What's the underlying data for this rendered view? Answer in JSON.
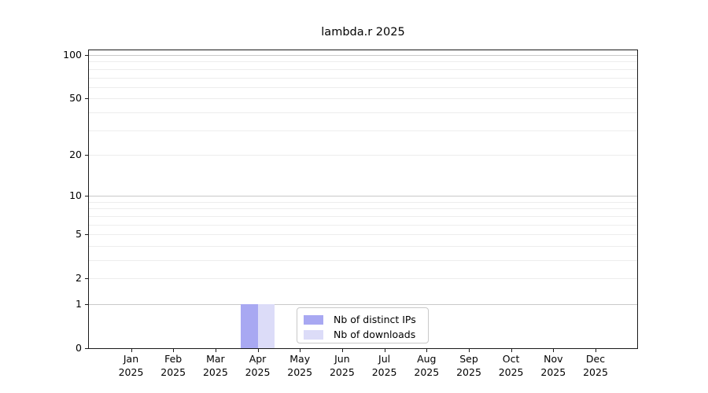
{
  "chart_data": {
    "type": "bar",
    "title": "lambda.r 2025",
    "x": {
      "months": [
        "Jan",
        "Feb",
        "Mar",
        "Apr",
        "May",
        "Jun",
        "Jul",
        "Aug",
        "Sep",
        "Oct",
        "Nov",
        "Dec"
      ],
      "year": "2025"
    },
    "y_axis": {
      "scale": "log1p",
      "lim": [
        0,
        100
      ],
      "tick_values": [
        0,
        1,
        2,
        5,
        10,
        20,
        50,
        100
      ],
      "minor_gridline_values": [
        2,
        3,
        4,
        5,
        6,
        7,
        8,
        9,
        20,
        30,
        40,
        50,
        60,
        70,
        80,
        90
      ],
      "power_gridline_values": [
        1,
        10,
        100
      ]
    },
    "series": [
      {
        "name": "Nb of distinct IPs",
        "color": "#a8a8f2",
        "values": [
          0,
          0,
          0,
          1,
          0,
          0,
          0,
          0,
          0,
          0,
          0,
          0
        ]
      },
      {
        "name": "Nb of downloads",
        "color": "#dcdcf8",
        "values": [
          0,
          0,
          0,
          1,
          0,
          0,
          0,
          0,
          0,
          0,
          0,
          0
        ]
      }
    ],
    "legend": {
      "position": "bottom-center",
      "entries": [
        "Nb of distinct IPs",
        "Nb of downloads"
      ]
    },
    "grid": true
  },
  "colors": {
    "grid_minor": "#ededed",
    "grid_power": "#c9c9c9",
    "spine": "#1a1a1a",
    "background": "#ffffff"
  }
}
